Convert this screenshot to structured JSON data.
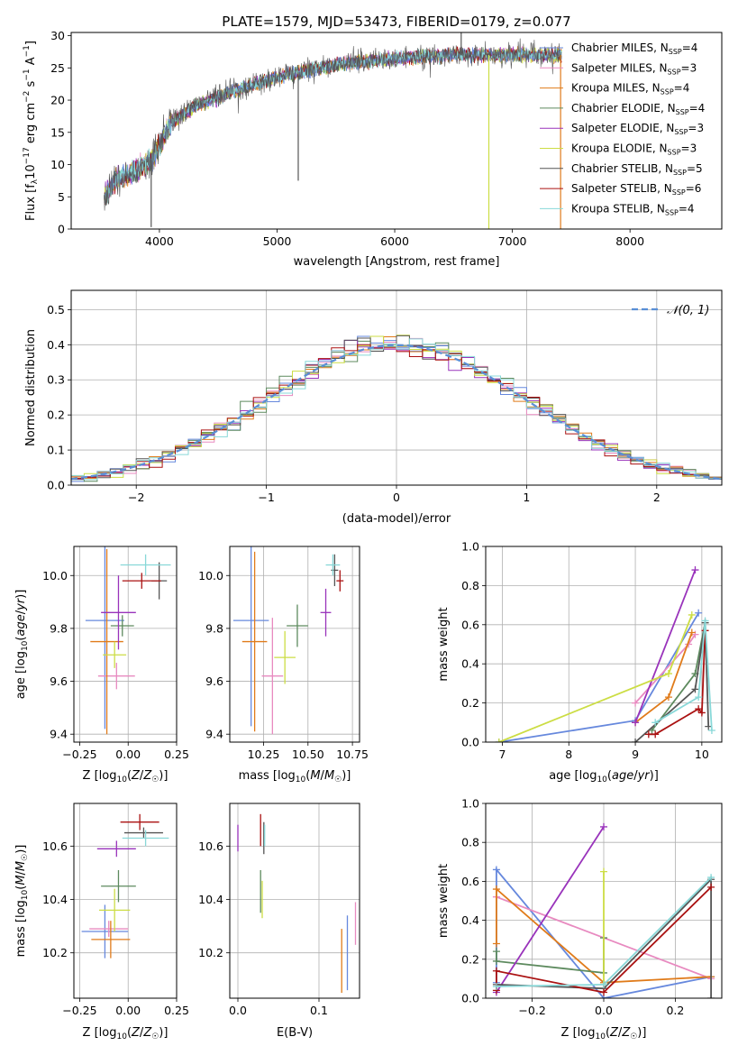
{
  "figure": {
    "title": "PLATE=1579, MJD=53473, FIBERID=0179, z=0.077"
  },
  "models": [
    {
      "name": "Chabrier MILES",
      "n": 4,
      "color": "#6688dd"
    },
    {
      "name": "Salpeter MILES",
      "n": 3,
      "color": "#e88ac0"
    },
    {
      "name": "Kroupa MILES",
      "n": 4,
      "color": "#e07b1a"
    },
    {
      "name": "Chabrier ELODIE",
      "n": 4,
      "color": "#5d8a5e"
    },
    {
      "name": "Salpeter ELODIE",
      "n": 3,
      "color": "#9933bb"
    },
    {
      "name": "Kroupa ELODIE",
      "n": 3,
      "color": "#ccdd44"
    },
    {
      "name": "Chabrier STELIB",
      "n": 5,
      "color": "#555555"
    },
    {
      "name": "Salpeter STELIB",
      "n": 6,
      "color": "#aa1111"
    },
    {
      "name": "Kroupa STELIB",
      "n": 4,
      "color": "#88d8d8"
    }
  ],
  "chart_data": [
    {
      "type": "line",
      "xlabel": "wavelength [Angstrom, rest frame]",
      "ylabel": "Flux [f_λ10^-17 erg cm^-2 s^-1 A^-1]",
      "xlim": [
        3250,
        8780
      ],
      "ylim": [
        0,
        30.5
      ],
      "xticks": [
        4000,
        5000,
        6000,
        7000,
        8000
      ],
      "yticks": [
        0,
        5,
        10,
        15,
        20,
        25,
        30
      ],
      "spectrum_range": [
        3530,
        7420
      ],
      "spectrum_key": [
        [
          3530,
          5
        ],
        [
          3650,
          8
        ],
        [
          3800,
          9
        ],
        [
          3950,
          11
        ],
        [
          4100,
          16.5
        ],
        [
          4300,
          19
        ],
        [
          4500,
          20.5
        ],
        [
          4800,
          22.5
        ],
        [
          5100,
          24
        ],
        [
          5500,
          25.5
        ],
        [
          6000,
          26.5
        ],
        [
          6500,
          27
        ],
        [
          7000,
          27
        ],
        [
          7400,
          27
        ]
      ],
      "flux_markers": [
        {
          "x": 5180,
          "y": 7.5
        },
        {
          "x": 6565,
          "y": 30.5
        },
        {
          "x": 6800,
          "y": 0
        },
        {
          "x": 7410,
          "y": 0
        },
        {
          "x": 3930,
          "y": 0.3
        }
      ],
      "legend_placement": "right"
    },
    {
      "type": "histogram",
      "xlabel": "(data-model)/error",
      "ylabel": "Normed distribution",
      "xlim": [
        -2.5,
        2.5
      ],
      "ylim": [
        0,
        0.555
      ],
      "xticks": [
        -2,
        -1,
        0,
        1,
        2
      ],
      "yticks": [
        0.0,
        0.1,
        0.2,
        0.3,
        0.4,
        0.5
      ],
      "bin_edges": [
        -2.5,
        2.5
      ],
      "bin_width": 0.1,
      "reference": "𝒩(0, 1)",
      "reference_mu": 0,
      "reference_sigma": 1,
      "grid": true
    },
    {
      "type": "scatter",
      "xlabel": "Z [log10(Z/Z☉)]",
      "ylabel": "age [log10(age/yr)]",
      "xlim": [
        -0.28,
        0.25
      ],
      "ylim": [
        9.37,
        10.11
      ],
      "xticks": [
        -0.25,
        0.0,
        0.25
      ],
      "xticklabels": [
        "−0.25",
        "0.00",
        "0.25"
      ],
      "yticks": [
        9.4,
        9.6,
        9.8,
        10.0
      ],
      "yticklabels": [
        "9.4",
        "9.6",
        "9.8",
        "10.0"
      ],
      "points": [
        {
          "x": -0.12,
          "y": 9.83,
          "xerr": 0.1,
          "yerr": 0.41,
          "c": 0
        },
        {
          "x": -0.06,
          "y": 9.62,
          "xerr": 0.095,
          "yerr": 0.05,
          "c": 1
        },
        {
          "x": -0.11,
          "y": 9.75,
          "xerr": 0.085,
          "yerr": 0.35,
          "c": 2
        },
        {
          "x": -0.03,
          "y": 9.81,
          "xerr": 0.06,
          "yerr": 0.04,
          "c": 3
        },
        {
          "x": -0.05,
          "y": 9.86,
          "xerr": 0.09,
          "yerr": 0.14,
          "c": 4
        },
        {
          "x": -0.07,
          "y": 9.7,
          "xerr": 0.06,
          "yerr": 0.05,
          "c": 5
        },
        {
          "x": 0.16,
          "y": 9.98,
          "xerr": 0.04,
          "yerr": 0.07,
          "c": 6
        },
        {
          "x": 0.07,
          "y": 9.98,
          "xerr": 0.1,
          "yerr": 0.03,
          "c": 7
        },
        {
          "x": 0.09,
          "y": 10.04,
          "xerr": 0.13,
          "yerr": 0.04,
          "c": 8
        }
      ]
    },
    {
      "type": "scatter",
      "xlabel": "mass [log10(M/M☉)]",
      "ylabel": "",
      "xlim": [
        10.06,
        10.79
      ],
      "ylim": [
        9.37,
        10.11
      ],
      "xticks": [
        10.25,
        10.5,
        10.75
      ],
      "xticklabels": [
        "10.25",
        "10.50",
        "10.75"
      ],
      "yticks": [
        9.4,
        9.6,
        9.8,
        10.0
      ],
      "yticklabels": [
        "9.4",
        "9.6",
        "9.8",
        "10.0"
      ],
      "points": [
        {
          "x": 10.18,
          "y": 9.83,
          "xerr": 0.1,
          "yerr": 0.4,
          "c": 0
        },
        {
          "x": 10.3,
          "y": 9.62,
          "xerr": 0.06,
          "yerr": 0.22,
          "c": 1
        },
        {
          "x": 10.2,
          "y": 9.75,
          "xerr": 0.07,
          "yerr": 0.34,
          "c": 2
        },
        {
          "x": 10.44,
          "y": 9.81,
          "xerr": 0.06,
          "yerr": 0.08,
          "c": 3
        },
        {
          "x": 10.6,
          "y": 9.86,
          "xerr": 0.03,
          "yerr": 0.09,
          "c": 4
        },
        {
          "x": 10.37,
          "y": 9.69,
          "xerr": 0.06,
          "yerr": 0.1,
          "c": 5
        },
        {
          "x": 10.65,
          "y": 10.02,
          "xerr": 0.02,
          "yerr": 0.06,
          "c": 6
        },
        {
          "x": 10.68,
          "y": 9.98,
          "xerr": 0.02,
          "yerr": 0.04,
          "c": 7
        },
        {
          "x": 10.64,
          "y": 10.04,
          "xerr": 0.04,
          "yerr": 0.04,
          "c": 8
        }
      ]
    },
    {
      "type": "line",
      "xlabel": "age [log10(age/yr)]",
      "ylabel": "mass weight",
      "xlim": [
        6.75,
        10.3
      ],
      "ylim": [
        0,
        1.0
      ],
      "xticks": [
        7,
        8,
        9,
        10
      ],
      "yticks": [
        0.0,
        0.2,
        0.4,
        0.6,
        0.8,
        1.0
      ],
      "grid": true,
      "series": [
        {
          "c": 0,
          "x": [
            6.95,
            9.0,
            9.95
          ],
          "y": [
            0.0,
            0.11,
            0.66
          ]
        },
        {
          "c": 1,
          "x": [
            9.0,
            9.8,
            9.9
          ],
          "y": [
            0.2,
            0.5,
            0.55
          ]
        },
        {
          "c": 2,
          "x": [
            9.0,
            9.5,
            9.85
          ],
          "y": [
            0.1,
            0.23,
            0.56
          ]
        },
        {
          "c": 3,
          "x": [
            9.25,
            9.9,
            10.05
          ],
          "y": [
            0.06,
            0.35,
            0.61
          ]
        },
        {
          "c": 4,
          "x": [
            9.0,
            9.9
          ],
          "y": [
            0.1,
            0.88
          ]
        },
        {
          "c": 5,
          "x": [
            6.95,
            9.5,
            9.85
          ],
          "y": [
            0.0,
            0.35,
            0.65
          ]
        },
        {
          "c": 6,
          "x": [
            9.0,
            9.9,
            10.05,
            10.1
          ],
          "y": [
            0.0,
            0.27,
            0.61,
            0.08
          ]
        },
        {
          "c": 7,
          "x": [
            9.2,
            9.3,
            9.95,
            10.0,
            10.05
          ],
          "y": [
            0.04,
            0.04,
            0.17,
            0.15,
            0.57
          ]
        },
        {
          "c": 8,
          "x": [
            9.3,
            9.95,
            10.05,
            10.15
          ],
          "y": [
            0.1,
            0.23,
            0.62,
            0.06
          ]
        }
      ]
    },
    {
      "type": "scatter",
      "xlabel": "Z [log10(Z/Z☉)]",
      "ylabel": "mass [log10(M/M☉)]",
      "xlim": [
        -0.28,
        0.25
      ],
      "ylim": [
        10.03,
        10.76
      ],
      "xticks": [
        -0.25,
        0.0,
        0.25
      ],
      "xticklabels": [
        "−0.25",
        "0.00",
        "0.25"
      ],
      "yticks": [
        10.2,
        10.4,
        10.6
      ],
      "yticklabels": [
        "10.2",
        "10.4",
        "10.6"
      ],
      "points": [
        {
          "x": -0.12,
          "y": 10.28,
          "xerr": 0.12,
          "yerr": 0.1,
          "c": 0
        },
        {
          "x": -0.1,
          "y": 10.29,
          "xerr": 0.1,
          "yerr": 0.03,
          "c": 1
        },
        {
          "x": -0.09,
          "y": 10.25,
          "xerr": 0.1,
          "yerr": 0.07,
          "c": 2
        },
        {
          "x": -0.05,
          "y": 10.45,
          "xerr": 0.09,
          "yerr": 0.06,
          "c": 3
        },
        {
          "x": -0.06,
          "y": 10.59,
          "xerr": 0.1,
          "yerr": 0.03,
          "c": 4
        },
        {
          "x": -0.07,
          "y": 10.36,
          "xerr": 0.08,
          "yerr": 0.08,
          "c": 5
        },
        {
          "x": 0.08,
          "y": 10.65,
          "xerr": 0.1,
          "yerr": 0.02,
          "c": 6
        },
        {
          "x": 0.06,
          "y": 10.69,
          "xerr": 0.1,
          "yerr": 0.03,
          "c": 7
        },
        {
          "x": 0.09,
          "y": 10.63,
          "xerr": 0.12,
          "yerr": 0.03,
          "c": 8
        }
      ]
    },
    {
      "type": "scatter",
      "xlabel": "E(B-V)",
      "ylabel": "",
      "xlim": [
        -0.01,
        0.15
      ],
      "ylim": [
        10.03,
        10.76
      ],
      "xticks": [
        0.0,
        0.1
      ],
      "xticklabels": [
        "0.0",
        "0.1"
      ],
      "yticks": [
        10.2,
        10.4,
        10.6
      ],
      "yticklabels": [
        "10.2",
        "10.4",
        "10.6"
      ],
      "points": [
        {
          "x": 0.135,
          "y": 10.2,
          "xerr": 0.0,
          "yerr": 0.14,
          "c": 0
        },
        {
          "x": 0.145,
          "y": 10.31,
          "xerr": 0.0,
          "yerr": 0.08,
          "c": 1
        },
        {
          "x": 0.128,
          "y": 10.17,
          "xerr": 0.0,
          "yerr": 0.12,
          "c": 2
        },
        {
          "x": 0.028,
          "y": 10.43,
          "xerr": 0.0,
          "yerr": 0.08,
          "c": 3
        },
        {
          "x": 0.0,
          "y": 10.63,
          "xerr": 0.0,
          "yerr": 0.05,
          "c": 4
        },
        {
          "x": 0.03,
          "y": 10.4,
          "xerr": 0.0,
          "yerr": 0.07,
          "c": 5
        },
        {
          "x": 0.032,
          "y": 10.63,
          "xerr": 0.0,
          "yerr": 0.06,
          "c": 6
        },
        {
          "x": 0.028,
          "y": 10.66,
          "xerr": 0.0,
          "yerr": 0.06,
          "c": 7
        },
        {
          "x": 0.033,
          "y": 10.64,
          "xerr": 0.0,
          "yerr": 0.04,
          "c": 8
        }
      ]
    },
    {
      "type": "line",
      "xlabel": "Z [log10(Z/Z☉)]",
      "ylabel": "mass weight",
      "xlim": [
        -0.33,
        0.33
      ],
      "ylim": [
        0,
        1.0
      ],
      "xticks": [
        -0.2,
        0.0,
        0.2
      ],
      "xticklabels": [
        "−0.2",
        "0.0",
        "0.2"
      ],
      "yticks": [
        0.0,
        0.2,
        0.4,
        0.6,
        0.8,
        1.0
      ],
      "grid": true,
      "series": [
        {
          "c": 0,
          "x": [
            -0.3,
            -0.3,
            0.0,
            0.3
          ],
          "y": [
            0.08,
            0.66,
            0.0,
            0.11
          ]
        },
        {
          "c": 1,
          "x": [
            -0.3,
            0.3
          ],
          "y": [
            0.52,
            0.1
          ]
        },
        {
          "c": 2,
          "x": [
            -0.3,
            -0.3,
            0.0,
            0.3
          ],
          "y": [
            0.28,
            0.56,
            0.08,
            0.11
          ]
        },
        {
          "c": 3,
          "x": [
            -0.3,
            -0.3,
            0.0,
            0.0
          ],
          "y": [
            0.24,
            0.19,
            0.13,
            0.31
          ]
        },
        {
          "c": 4,
          "x": [
            -0.3,
            0.0
          ],
          "y": [
            0.03,
            0.88
          ]
        },
        {
          "c": 5,
          "x": [
            0.0,
            0.0
          ],
          "y": [
            0.65,
            0.07
          ]
        },
        {
          "c": 6,
          "x": [
            -0.3,
            0.0,
            0.3,
            0.3
          ],
          "y": [
            0.07,
            0.05,
            0.61,
            0.0
          ]
        },
        {
          "c": 7,
          "x": [
            -0.3,
            -0.3,
            0.0,
            0.3
          ],
          "y": [
            0.04,
            0.14,
            0.03,
            0.57
          ]
        },
        {
          "c": 8,
          "x": [
            -0.3,
            0.0,
            0.3
          ],
          "y": [
            0.06,
            0.07,
            0.62
          ]
        }
      ]
    }
  ]
}
